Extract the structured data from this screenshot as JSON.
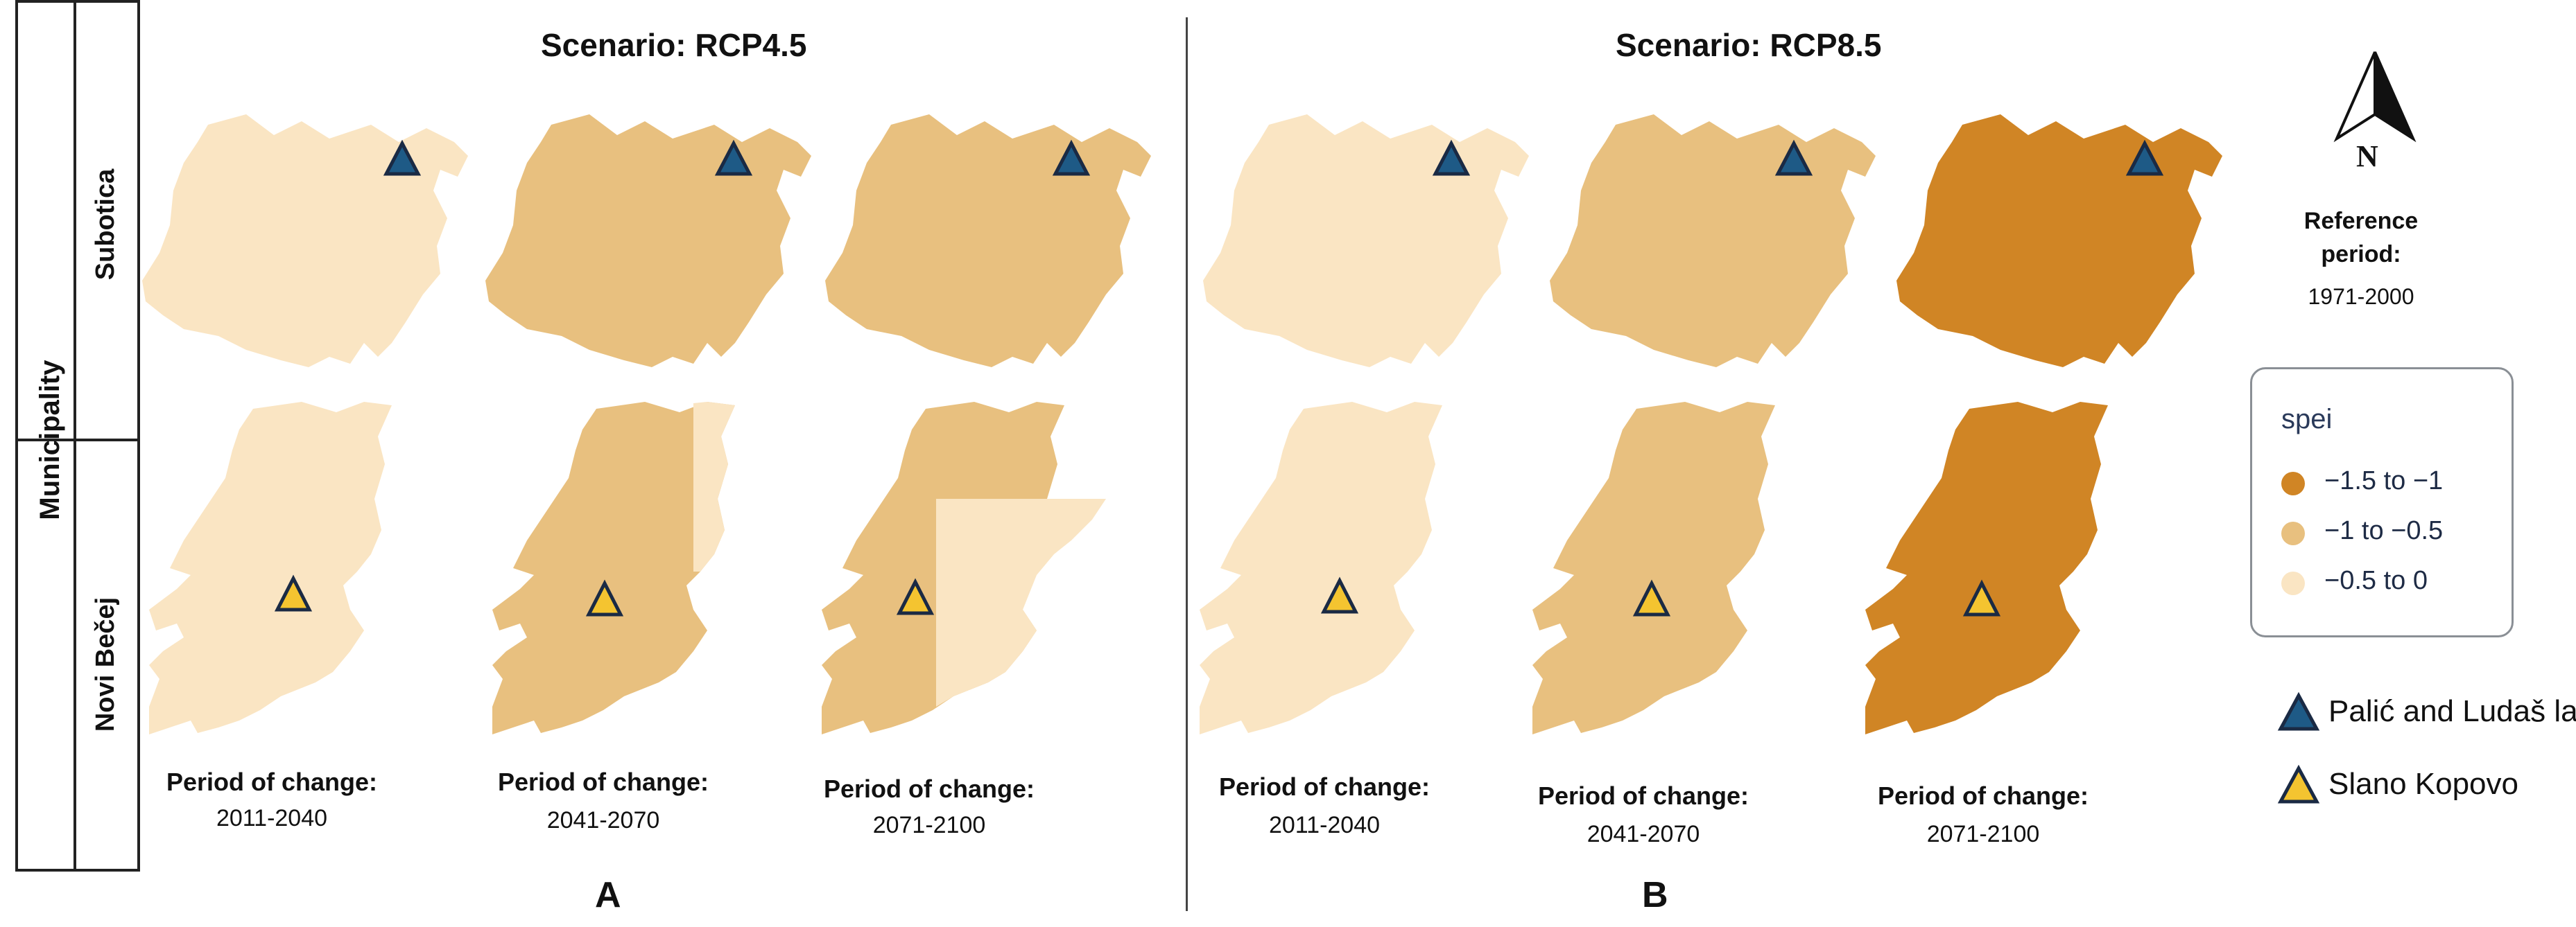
{
  "row_header": {
    "title": "Municipality",
    "rows": [
      "Subotica",
      "Novi Bečej"
    ]
  },
  "panels": [
    {
      "title": "Scenario: RCP4.5",
      "letter": "A",
      "periods": [
        {
          "label": "Period of change:",
          "value": "2011-2040"
        },
        {
          "label": "Period of change:",
          "value": "2041-2070"
        },
        {
          "label": "Period of change:",
          "value": "2071-2100"
        }
      ]
    },
    {
      "title": "Scenario: RCP8.5",
      "letter": "B",
      "periods": [
        {
          "label": "Period of change:",
          "value": "2011-2040"
        },
        {
          "label": "Period of change:",
          "value": "2041-2070"
        },
        {
          "label": "Period of change:",
          "value": "2071-2100"
        }
      ]
    }
  ],
  "north_arrow": {
    "label": "N",
    "icon": "north-arrow-icon"
  },
  "reference": {
    "label": "Reference period:",
    "value": "1971-2000"
  },
  "legend": {
    "title": "spei",
    "items": [
      {
        "label": "−1.5 to −1",
        "color": "#d08525"
      },
      {
        "label": "−1 to −0.5",
        "color": "#e8c07f"
      },
      {
        "label": "−0.5 to 0",
        "color": "#fae5c3"
      }
    ]
  },
  "markers": [
    {
      "label": "Palić and Ludaš lake",
      "color": "#1e5a86",
      "icon": "triangle-icon"
    },
    {
      "label": "Slano Kopovo",
      "color": "#f4c430",
      "icon": "triangle-icon"
    }
  ],
  "map_classes": {
    "subotica": [
      "−0.5 to 0",
      "−1 to −0.5",
      "−1 to −0.5",
      "−0.5 to 0",
      "−1 to −0.5",
      "−1.5 to −1"
    ],
    "novi_becej": [
      "−0.5 to 0",
      "−1 to −0.5 / −0.5 to 0",
      "−1 to −0.5 / −0.5 to 0",
      "−0.5 to 0",
      "−1 to −0.5",
      "−1.5 to −1"
    ]
  }
}
